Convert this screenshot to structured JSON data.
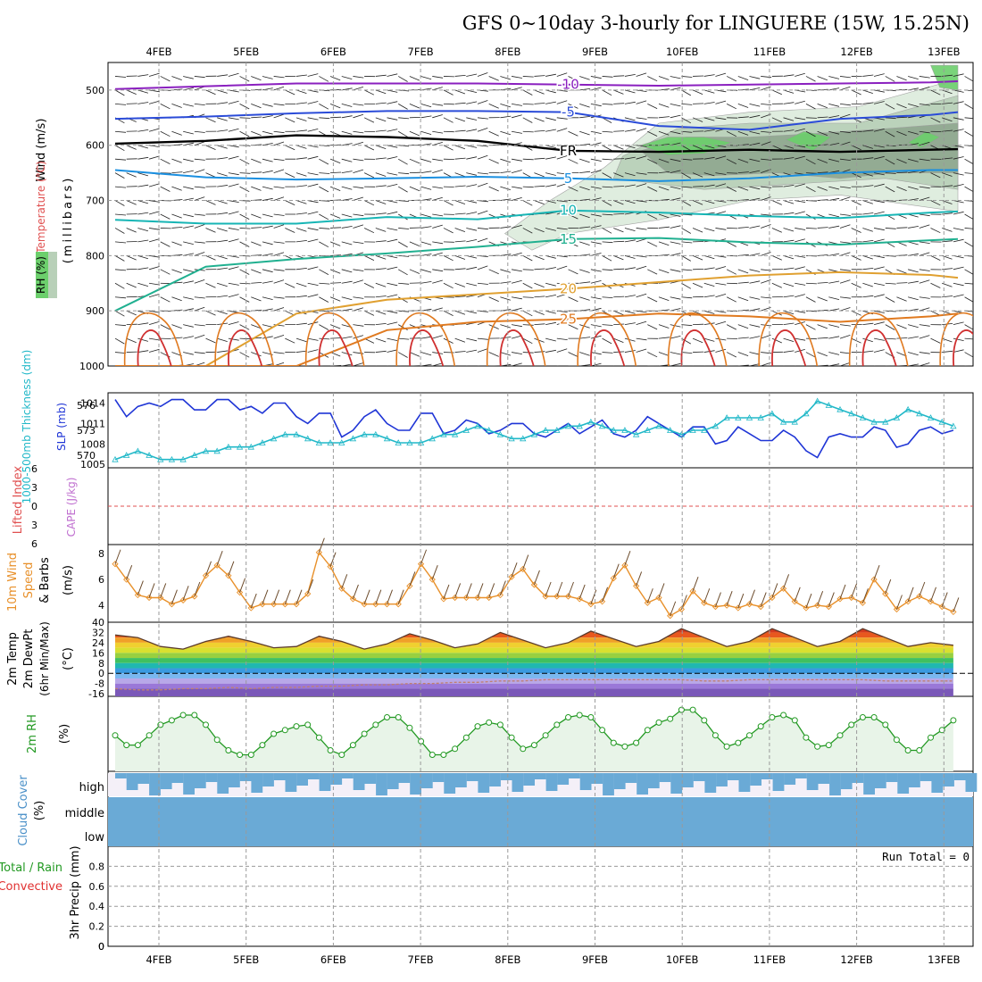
{
  "title": "GFS 0~10day 3-hourly for LINGUERE (15W, 15.25N)",
  "dates": [
    "4FEB",
    "5FEB",
    "6FEB",
    "7FEB",
    "8FEB",
    "9FEB",
    "10FEB",
    "11FEB",
    "12FEB",
    "13FEB"
  ],
  "colors": {
    "temp_neg10": "#8a1fbf",
    "temp_neg5": "#2a4bd8",
    "temp_fr": "#000000",
    "temp_5": "#1a8fe0",
    "temp_10": "#17b5b5",
    "temp_15": "#20b090",
    "temp_20": "#e0a030",
    "temp_25": "#e07a20",
    "temp_30": "#d03030",
    "rh_light": "#dcecdc",
    "rh_mid": "#b8d0b8",
    "rh_dark": "#8fa78f",
    "rh_green": "#6ccf6c",
    "slp": "#1f35d6",
    "thickness": "#21b8c8",
    "wind10": "#e8902a",
    "rh2m": "#229922",
    "cloud": "#6aaad6"
  },
  "panels": {
    "upper": {
      "label_wind": "Wind (m/s)",
      "label_temp": "Temperature (°C)",
      "label_rh": "RH (%)",
      "label_p": "(millibars)"
    },
    "slp": {
      "label_thick": "1000-500mb Thickness (dm)",
      "label_slp": "SLP (mb)"
    },
    "stab": {
      "label_li": "Lifted Index",
      "label_cape": "CAPE (J/kg)"
    },
    "wind10": {
      "label_title": "10m Wind",
      "label_speed": "Speed",
      "label_barbs": "& Barbs",
      "label_unit": "(m/s)"
    },
    "temp2m": {
      "label_a": "2m Temp",
      "label_b": "2m DewPt",
      "label_c": "(6hr Min/Max)",
      "label_unit": "(°C)"
    },
    "rh2m": {
      "label": "2m RH",
      "label_unit": "(%)"
    },
    "cloud": {
      "label": "Cloud Cover",
      "label_unit": "(%)",
      "levels": [
        "high",
        "middle",
        "low"
      ]
    },
    "precip": {
      "label_a": "Total / Rain",
      "label_b": "Convective",
      "label_c": "3hr Precip (mm)",
      "run_total": "Run Total = 0"
    }
  },
  "chart_data": [
    {
      "type": "contour",
      "panel": "upper-air",
      "x_dates": [
        "4FEB",
        "5FEB",
        "6FEB",
        "7FEB",
        "8FEB",
        "9FEB",
        "10FEB",
        "11FEB",
        "12FEB",
        "13FEB"
      ],
      "y_ticks": [
        500,
        600,
        700,
        800,
        900,
        1000
      ],
      "ylim": [
        1000,
        450
      ],
      "isotherms": [
        {
          "label": "-10",
          "x_day": [
            0,
            1,
            2,
            3,
            4,
            5,
            6,
            7,
            8,
            9,
            9.3
          ],
          "p": [
            498,
            493,
            488,
            488,
            488,
            490,
            492,
            490,
            488,
            486,
            484
          ]
        },
        {
          "label": "-5",
          "x_day": [
            0,
            1,
            2,
            3,
            4,
            5,
            6,
            7,
            8,
            9,
            9.3
          ],
          "p": [
            552,
            548,
            542,
            538,
            538,
            540,
            565,
            572,
            552,
            545,
            540
          ]
        },
        {
          "label": "FR",
          "x_day": [
            0,
            1,
            2,
            3,
            4,
            5,
            6,
            7,
            8,
            9,
            9.3
          ],
          "p": [
            597,
            592,
            582,
            585,
            592,
            610,
            612,
            608,
            612,
            608,
            607
          ]
        },
        {
          "label": "5",
          "x_day": [
            0,
            1,
            2,
            3,
            4,
            5,
            6,
            7,
            8,
            9,
            9.3
          ],
          "p": [
            645,
            658,
            662,
            660,
            657,
            660,
            665,
            660,
            650,
            645,
            645
          ]
        },
        {
          "label": "10",
          "x_day": [
            0,
            1,
            2,
            3,
            4,
            5,
            6,
            7,
            8,
            9,
            9.3
          ],
          "p": [
            735,
            742,
            742,
            730,
            734,
            718,
            722,
            728,
            732,
            722,
            720
          ]
        },
        {
          "label": "15",
          "x_day": [
            0,
            1,
            2,
            3,
            4,
            5,
            6,
            7,
            8,
            9,
            9.3
          ],
          "p": [
            900,
            820,
            806,
            796,
            784,
            770,
            768,
            776,
            780,
            772,
            770
          ]
        },
        {
          "label": "20",
          "x_day": [
            0,
            1,
            2,
            3,
            4,
            5,
            6,
            7,
            8,
            9,
            9.3
          ],
          "p": [
            1000,
            1000,
            905,
            880,
            870,
            860,
            848,
            836,
            830,
            835,
            840
          ]
        },
        {
          "label": "25",
          "x_day": [
            0,
            1,
            2,
            3,
            4,
            5,
            6,
            7,
            8,
            9,
            9.3
          ],
          "p": [
            1000,
            1000,
            1000,
            935,
            920,
            915,
            905,
            910,
            920,
            910,
            905
          ]
        }
      ],
      "rh_levels": [
        30,
        50,
        70,
        90
      ]
    },
    {
      "type": "line",
      "panel": "slp-thickness",
      "x_day": [
        0,
        0.125,
        0.25,
        0.375,
        0.5,
        0.625,
        0.75,
        0.875,
        1,
        1.125,
        1.25,
        1.375,
        1.5,
        1.625,
        1.75,
        1.875,
        2,
        2.125,
        2.25,
        2.375,
        2.5,
        2.625,
        2.75,
        2.875,
        3,
        3.125,
        3.25,
        3.375,
        3.5,
        3.625,
        3.75,
        3.875,
        4,
        4.125,
        4.25,
        4.375,
        4.5,
        4.625,
        4.75,
        4.875,
        5,
        5.125,
        5.25,
        5.375,
        5.5,
        5.625,
        5.75,
        5.875,
        6,
        6.125,
        6.25,
        6.375,
        6.5,
        6.625,
        6.75,
        6.875,
        7,
        7.125,
        7.25,
        7.375,
        7.5,
        7.625,
        7.75,
        7.875,
        8,
        8.125,
        8.25,
        8.375,
        8.5,
        8.625,
        8.75,
        8.875,
        9,
        9.125,
        9.25
      ],
      "series": [
        {
          "name": "SLP (mb)",
          "axis": "right",
          "values": [
            1014.5,
            1012,
            1013.5,
            1014,
            1013.5,
            1014.5,
            1014.5,
            1013,
            1013,
            1014.5,
            1014.5,
            1013,
            1013.5,
            1012.5,
            1014,
            1014,
            1012,
            1011,
            1012.5,
            1012.5,
            1009,
            1010,
            1012,
            1013,
            1011,
            1010,
            1010,
            1012.5,
            1012.5,
            1009.5,
            1010,
            1011.5,
            1011,
            1009.5,
            1010,
            1011,
            1011,
            1009.5,
            1009,
            1010,
            1011,
            1009.5,
            1010.5,
            1011.5,
            1009.5,
            1009,
            1010,
            1012,
            1011,
            1010,
            1009,
            1010.5,
            1010.5,
            1008,
            1008.5,
            1010.5,
            1009.5,
            1008.5,
            1008.5,
            1010,
            1009,
            1007,
            1006,
            1009,
            1009.5,
            1009,
            1009,
            1010.5,
            1010,
            1007.5,
            1008,
            1010,
            1010.5,
            1009.5,
            1010
          ]
        },
        {
          "name": "1000-500mb Thickness (dm)",
          "axis": "left",
          "values": [
            569.5,
            570,
            570.5,
            570,
            569.5,
            569.5,
            569.5,
            570,
            570.5,
            570.5,
            571,
            571,
            571,
            571.5,
            572,
            572.5,
            572.5,
            572,
            571.5,
            571.5,
            571.5,
            572,
            572.5,
            572.5,
            572,
            571.5,
            571.5,
            571.5,
            572,
            572.5,
            572.5,
            573,
            573.5,
            573,
            572.5,
            572,
            572,
            572.5,
            573,
            573,
            573.5,
            573.5,
            574,
            573.5,
            573,
            573,
            572.5,
            573,
            573.5,
            573,
            572.5,
            573,
            573,
            573.5,
            574.5,
            574.5,
            574.5,
            574.5,
            575,
            574,
            574,
            575,
            576.5,
            576,
            575.5,
            575,
            574.5,
            574,
            574,
            574.5,
            575.5,
            575,
            574.5,
            574,
            573.5
          ]
        }
      ],
      "y_left_ticks": [
        570,
        573,
        576
      ],
      "y_right_ticks": [
        1005,
        1008,
        1011,
        1014
      ]
    },
    {
      "type": "line",
      "panel": "stability",
      "y_ticks": [
        -6,
        -3,
        0,
        3,
        6
      ],
      "ylim": [
        6,
        -6
      ],
      "series": []
    },
    {
      "type": "line",
      "panel": "wind10m",
      "x_day": [
        0,
        0.125,
        0.25,
        0.375,
        0.5,
        0.625,
        0.75,
        0.875,
        1,
        1.125,
        1.25,
        1.375,
        1.5,
        1.625,
        1.75,
        1.875,
        2,
        2.125,
        2.25,
        2.375,
        2.5,
        2.625,
        2.75,
        2.875,
        3,
        3.125,
        3.25,
        3.375,
        3.5,
        3.625,
        3.75,
        3.875,
        4,
        4.125,
        4.25,
        4.375,
        4.5,
        4.625,
        4.75,
        4.875,
        5,
        5.125,
        5.25,
        5.375,
        5.5,
        5.625,
        5.75,
        5.875,
        6,
        6.125,
        6.25,
        6.375,
        6.5,
        6.625,
        6.75,
        6.875,
        7,
        7.125,
        7.25,
        7.375,
        7.5,
        7.625,
        7.75,
        7.875,
        8,
        8.125,
        8.25,
        8.375,
        8.5,
        8.625,
        8.75,
        8.875,
        9,
        9.125,
        9.25
      ],
      "series": [
        {
          "name": "Speed",
          "values": [
            7.2,
            6,
            4.8,
            4.6,
            4.6,
            4.1,
            4.4,
            4.7,
            6.3,
            7.1,
            6.3,
            5,
            3.8,
            4.1,
            4.1,
            4.1,
            4.1,
            4.9,
            8.1,
            7,
            5.3,
            4.5,
            4.1,
            4.1,
            4.1,
            4.1,
            5.5,
            7.2,
            6,
            4.5,
            4.6,
            4.6,
            4.6,
            4.6,
            4.8,
            6.2,
            6.8,
            5.6,
            4.7,
            4.7,
            4.7,
            4.5,
            4.1,
            4.3,
            6.1,
            7.1,
            5.5,
            4.2,
            4.6,
            3.2,
            3.7,
            5.1,
            4.2,
            3.9,
            4,
            3.8,
            4.1,
            3.9,
            4.6,
            5.3,
            4.3,
            3.8,
            4,
            3.9,
            4.5,
            4.6,
            4.2,
            6,
            4.9,
            3.7,
            4.3,
            4.7,
            4.3,
            3.9,
            3.5
          ]
        }
      ],
      "y_ticks": [
        4,
        6,
        8
      ]
    },
    {
      "type": "area",
      "panel": "temp2m",
      "x_day": [
        0,
        0.25,
        0.5,
        0.75,
        1,
        1.25,
        1.5,
        1.75,
        2,
        2.25,
        2.5,
        2.75,
        3,
        3.25,
        3.5,
        3.75,
        4,
        4.25,
        4.5,
        4.75,
        5,
        5.25,
        5.5,
        5.75,
        6,
        6.25,
        6.5,
        6.75,
        7,
        7.25,
        7.5,
        7.75,
        8,
        8.25,
        8.5,
        8.75,
        9,
        9.25
      ],
      "series": [
        {
          "name": "2m Temp",
          "values": [
            30,
            28,
            21,
            19,
            25,
            29,
            25,
            20,
            21,
            29,
            25,
            19,
            23,
            31,
            26,
            20,
            23,
            32,
            26,
            20,
            24,
            33,
            27,
            21,
            25,
            35,
            28,
            21,
            25,
            35,
            28,
            21,
            25,
            35,
            28,
            21,
            24,
            22
          ]
        },
        {
          "name": "2m DewPt",
          "values": [
            -12,
            -13,
            -13,
            -12,
            -12,
            -11,
            -12,
            -11,
            -11,
            -10,
            -10,
            -9,
            -9,
            -8,
            -8,
            -7,
            -7,
            -6,
            -6,
            -5,
            -5,
            -5,
            -5,
            -5,
            -5,
            -5,
            -6,
            -6,
            -5,
            -5,
            -5,
            -5,
            -5,
            -5,
            -6,
            -6,
            -6,
            -6
          ]
        }
      ],
      "y_ticks": [
        -16,
        -8,
        0,
        8,
        16,
        24,
        32,
        40
      ]
    },
    {
      "type": "line",
      "panel": "rh2m",
      "x_day": [
        0,
        0.125,
        0.25,
        0.375,
        0.5,
        0.625,
        0.75,
        0.875,
        1,
        1.125,
        1.25,
        1.375,
        1.5,
        1.625,
        1.75,
        1.875,
        2,
        2.125,
        2.25,
        2.375,
        2.5,
        2.625,
        2.75,
        2.875,
        3,
        3.125,
        3.25,
        3.375,
        3.5,
        3.625,
        3.75,
        3.875,
        4,
        4.125,
        4.25,
        4.375,
        4.5,
        4.625,
        4.75,
        4.875,
        5,
        5.125,
        5.25,
        5.375,
        5.5,
        5.625,
        5.75,
        5.875,
        6,
        6.125,
        6.25,
        6.375,
        6.5,
        6.625,
        6.75,
        6.875,
        7,
        7.125,
        7.25,
        7.375,
        7.5,
        7.625,
        7.75,
        7.875,
        8,
        8.125,
        8.25,
        8.375,
        8.5,
        8.625,
        8.75,
        8.875,
        9,
        9.125,
        9.25
      ],
      "series": [
        {
          "name": "2m RH",
          "values": [
            48,
            35,
            35,
            48,
            62,
            68,
            75,
            75,
            62,
            42,
            28,
            22,
            22,
            35,
            50,
            55,
            60,
            62,
            45,
            28,
            22,
            35,
            50,
            62,
            72,
            72,
            58,
            40,
            22,
            22,
            30,
            45,
            60,
            65,
            62,
            45,
            30,
            35,
            48,
            62,
            72,
            75,
            72,
            55,
            38,
            33,
            38,
            55,
            65,
            70,
            82,
            82,
            68,
            48,
            33,
            38,
            48,
            60,
            72,
            75,
            68,
            45,
            33,
            35,
            48,
            62,
            72,
            72,
            62,
            42,
            28,
            28,
            45,
            55,
            68
          ]
        }
      ],
      "ylim": [
        0,
        100
      ]
    },
    {
      "type": "bar",
      "panel": "cloud",
      "levels": [
        "high",
        "middle",
        "low"
      ],
      "low_cover": 100,
      "middle_cover": 95,
      "high_cover": 85
    },
    {
      "type": "bar",
      "panel": "precip",
      "y_ticks": [
        0,
        0.2,
        0.4,
        0.6,
        0.8
      ],
      "values": []
    }
  ]
}
